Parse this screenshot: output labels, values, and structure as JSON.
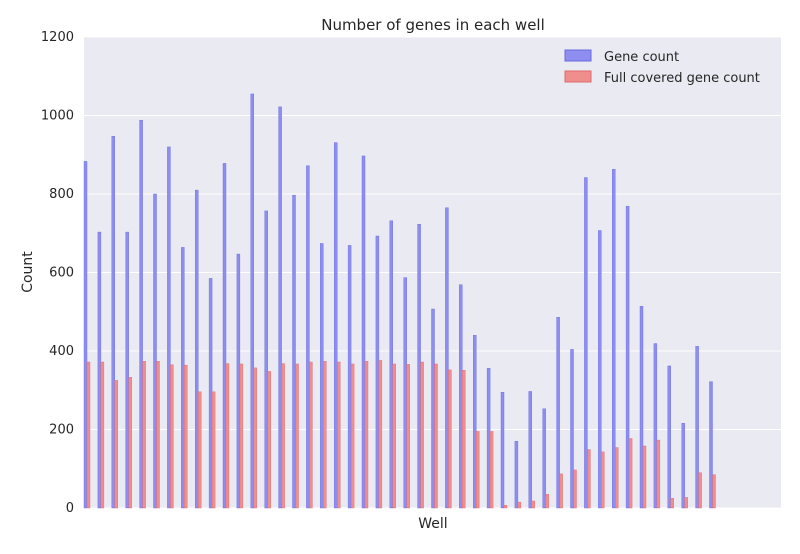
{
  "chart_data": {
    "type": "bar",
    "title": "Number of genes in each well",
    "xlabel": "Well",
    "ylabel": "Count",
    "ylim": [
      0,
      1200
    ],
    "yticks": [
      0,
      200,
      400,
      600,
      800,
      1000,
      1200
    ],
    "grid": true,
    "legend_position": "top-right",
    "series": [
      {
        "name": "Gene count",
        "color": "#8e8ef0",
        "values": [
          883,
          703,
          947,
          703,
          988,
          800,
          920,
          664,
          810,
          585,
          878,
          647,
          1055,
          757,
          1022,
          797,
          872,
          674,
          931,
          669,
          897,
          693,
          732,
          587,
          723,
          507,
          765,
          569,
          440,
          356,
          295,
          170,
          297,
          253,
          486,
          404,
          842,
          707,
          863,
          769,
          514,
          419,
          362,
          216,
          412,
          322
        ]
      },
      {
        "name": "Full covered gene count",
        "color": "#f08e8e",
        "values": [
          372,
          372,
          325,
          333,
          374,
          374,
          365,
          364,
          296,
          296,
          368,
          367,
          357,
          348,
          368,
          367,
          372,
          374,
          372,
          367,
          374,
          376,
          367,
          366,
          372,
          367,
          352,
          351,
          195,
          195,
          7,
          15,
          18,
          35,
          87,
          97,
          149,
          143,
          154,
          177,
          158,
          173,
          25,
          27,
          90,
          85
        ]
      }
    ]
  }
}
